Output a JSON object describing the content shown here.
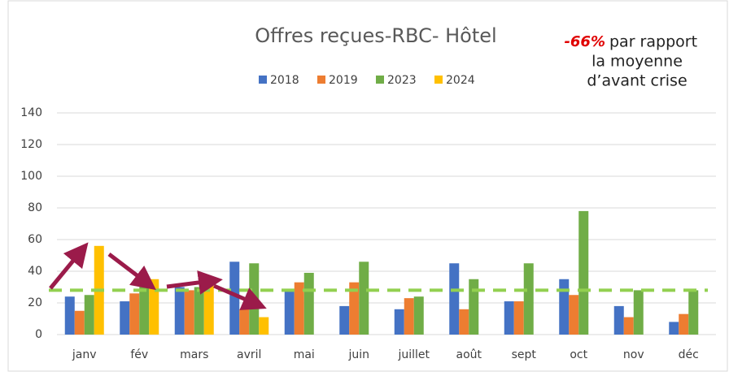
{
  "chart_data": {
    "type": "bar",
    "title": "Offres reçues-RBC- Hôtel",
    "annotation": {
      "highlight": "-66%",
      "text": [
        "par rapport",
        "la moyenne",
        "d’avant crise"
      ]
    },
    "categories": [
      "janv",
      "fév",
      "mars",
      "avril",
      "mai",
      "juin",
      "juillet",
      "août",
      "sept",
      "oct",
      "nov",
      "déc"
    ],
    "series": [
      {
        "name": "2018",
        "color": "#4472c4",
        "values": [
          24,
          21,
          30,
          46,
          28,
          18,
          16,
          45,
          21,
          35,
          18,
          8
        ]
      },
      {
        "name": "2019",
        "color": "#ed7d31",
        "values": [
          15,
          26,
          28,
          16,
          33,
          33,
          23,
          16,
          21,
          25,
          11,
          13
        ]
      },
      {
        "name": "2023",
        "color": "#70ad47",
        "values": [
          25,
          32,
          30,
          45,
          39,
          46,
          24,
          35,
          45,
          78,
          28,
          28
        ]
      },
      {
        "name": "2024",
        "color": "#ffc000",
        "values": [
          56,
          35,
          35,
          11,
          null,
          null,
          null,
          null,
          null,
          null,
          null,
          null
        ]
      }
    ],
    "reference_line": {
      "value": 28,
      "color": "#92d050"
    },
    "ylim": [
      0,
      140
    ],
    "yticks": [
      0,
      20,
      40,
      60,
      80,
      100,
      120,
      140
    ],
    "grid": true,
    "legend": "top"
  }
}
